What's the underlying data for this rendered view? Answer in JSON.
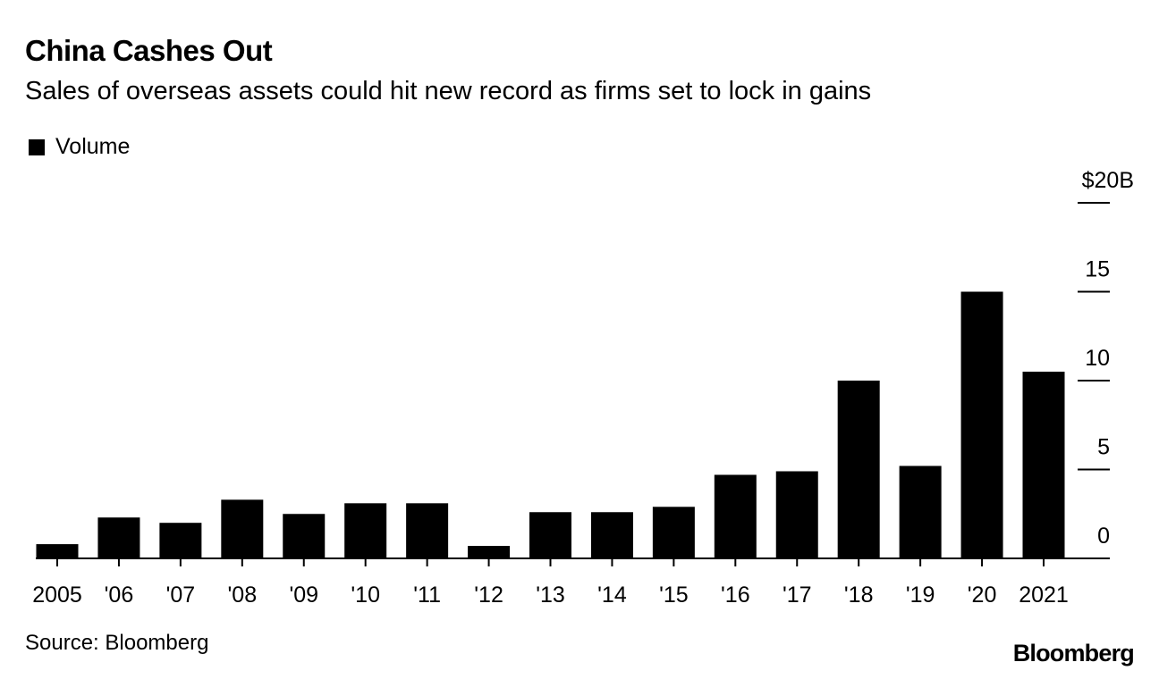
{
  "header": {
    "title": "China Cashes Out",
    "subtitle": "Sales of overseas assets could hit new record as firms set to lock in gains"
  },
  "legend": {
    "label": "Volume"
  },
  "footer": {
    "source": "Source: Bloomberg",
    "brand": "Bloomberg"
  },
  "colors": {
    "bar": "#000000",
    "axis": "#000000",
    "background": "#ffffff"
  },
  "chart_data": {
    "type": "bar",
    "title": "China Cashes Out",
    "subtitle": "Sales of overseas assets could hit new record as firms set to lock in gains",
    "xlabel": "",
    "ylabel": "",
    "legend_position": "top-left",
    "y_axis_position": "right",
    "grid": false,
    "ylim": [
      0,
      20
    ],
    "yticks": [
      0,
      5,
      10,
      15,
      20
    ],
    "ytick_labels": [
      "0",
      "5",
      "10",
      "15",
      "$20B"
    ],
    "categories": [
      "2005",
      "'06",
      "'07",
      "'08",
      "'09",
      "'10",
      "'11",
      "'12",
      "'13",
      "'14",
      "'15",
      "'16",
      "'17",
      "'18",
      "'19",
      "'20",
      "2021"
    ],
    "series": [
      {
        "name": "Volume",
        "values": [
          0.8,
          2.3,
          2.0,
          3.3,
          2.5,
          3.1,
          3.1,
          0.7,
          2.6,
          2.6,
          2.9,
          4.7,
          4.9,
          10.0,
          5.2,
          15.0,
          10.5
        ]
      }
    ]
  }
}
